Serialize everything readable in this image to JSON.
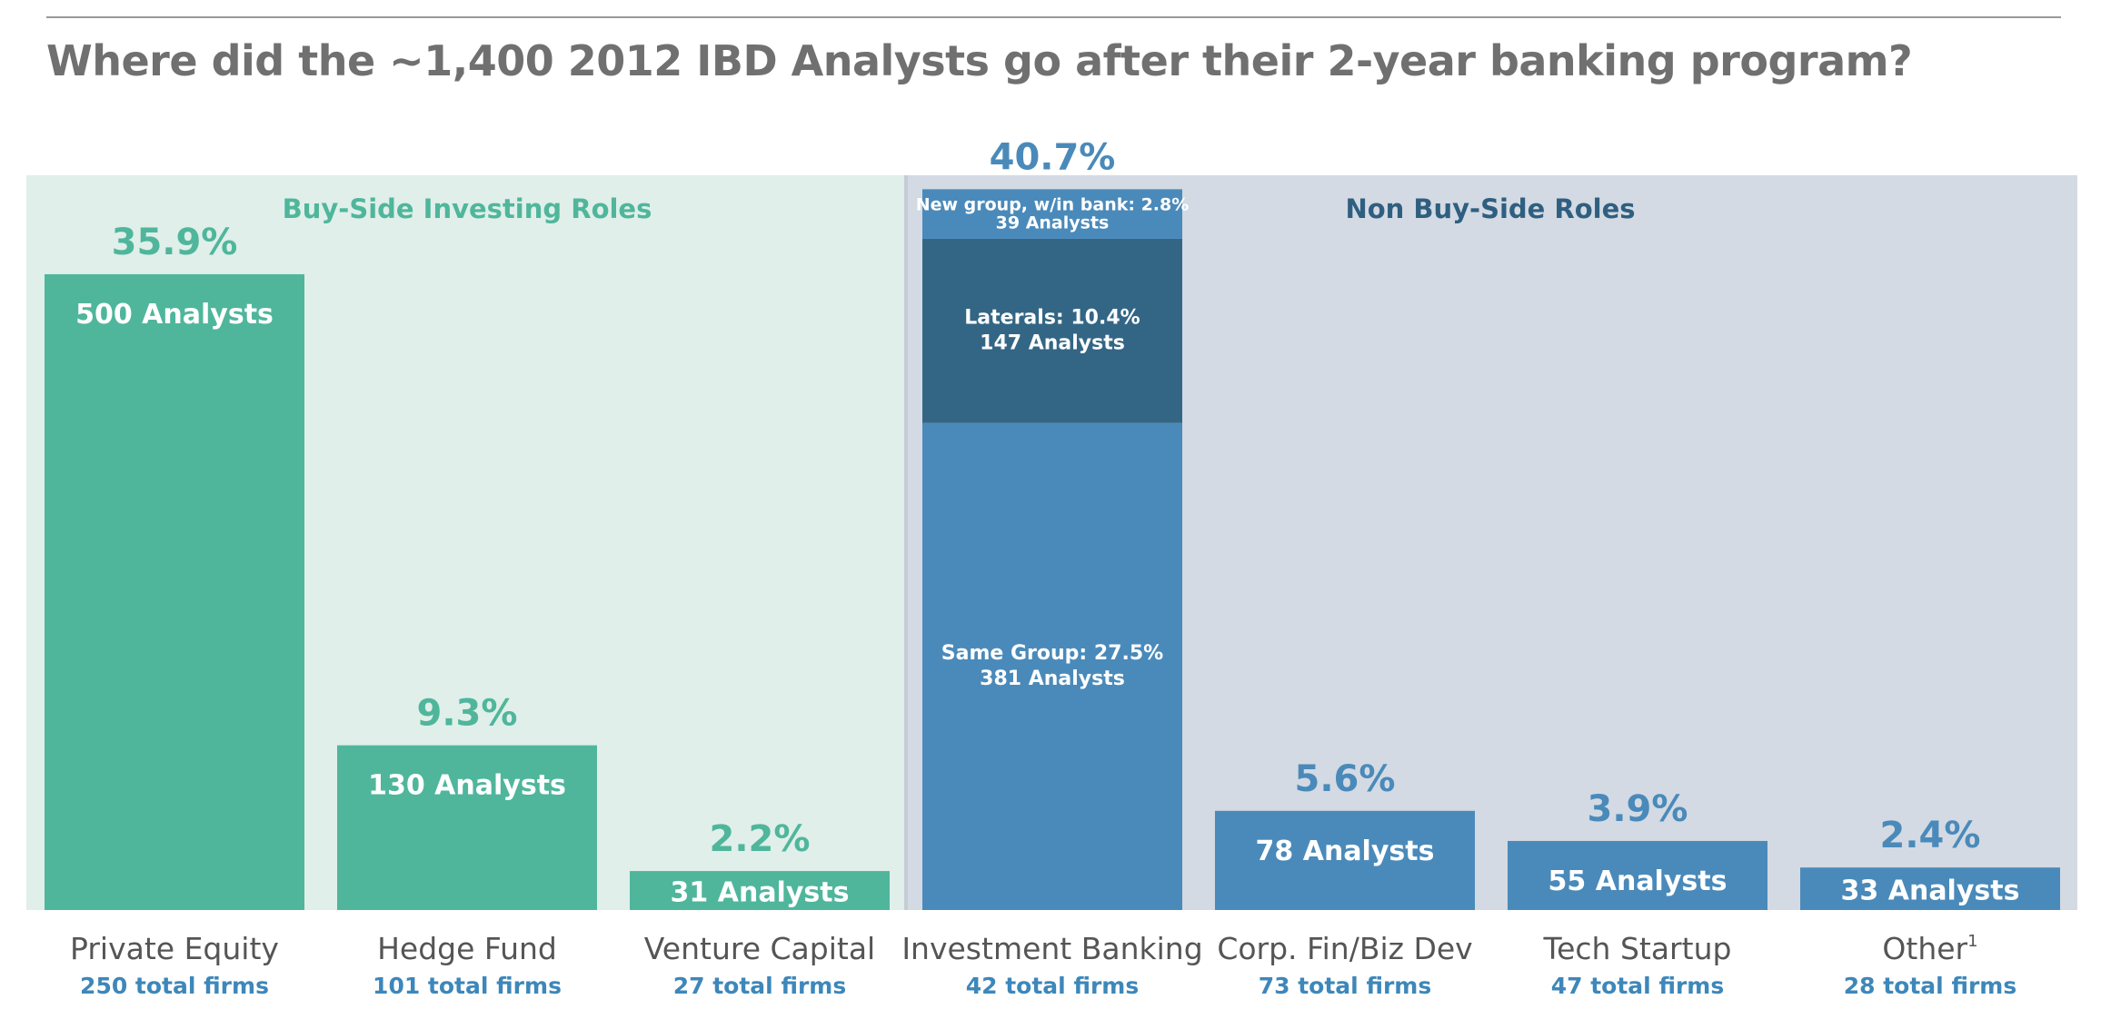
{
  "title": "Where did the ~1,400 2012 IBD Analysts go after their 2-year banking program?",
  "colors": {
    "buy_side_bg": "#e0efe9",
    "non_buy_side_bg": "#d3dae3",
    "buy_side_bar": "#4fb69c",
    "non_buy_side_bar": "#4a8aba",
    "laterals_segment": "#336685",
    "label_buy_side": "#4fb69c",
    "label_non_buy_side": "#2f5f80",
    "firms_text": "#3d87ba",
    "category_text": "#555555"
  },
  "chart_data": {
    "type": "bar",
    "title": "Where did the ~1,400 2012 IBD Analysts go after their 2-year banking program?",
    "ylim": [
      0,
      45
    ],
    "grid": false,
    "groups": [
      {
        "name": "Buy-Side Investing Roles",
        "categories": [
          "Private Equity",
          "Hedge Fund",
          "Venture Capital"
        ]
      },
      {
        "name": "Non Buy-Side Roles",
        "categories": [
          "Investment Banking",
          "Corp. Fin/Biz Dev",
          "Tech Startup",
          "Other"
        ]
      }
    ],
    "bars": [
      {
        "category": "Private Equity",
        "group": "buy",
        "percent": 35.9,
        "percent_label": "35.9%",
        "analysts": 500,
        "analysts_label": "500 Analysts",
        "firms_label": "250 total firms"
      },
      {
        "category": "Hedge Fund",
        "group": "buy",
        "percent": 9.3,
        "percent_label": "9.3%",
        "analysts": 130,
        "analysts_label": "130 Analysts",
        "firms_label": "101 total firms"
      },
      {
        "category": "Venture Capital",
        "group": "buy",
        "percent": 2.2,
        "percent_label": "2.2%",
        "analysts": 31,
        "analysts_label": "31 Analysts",
        "firms_label": "27 total firms"
      },
      {
        "category": "Investment Banking",
        "group": "non",
        "percent": 40.7,
        "percent_label": "40.7%",
        "firms_label": "42 total firms",
        "segments": [
          {
            "name": "Same Group",
            "percent": 27.5,
            "line1": "Same Group: 27.5%",
            "line2": "381 Analysts"
          },
          {
            "name": "Laterals",
            "percent": 10.4,
            "line1": "Laterals: 10.4%",
            "line2": "147 Analysts"
          },
          {
            "name": "New group, w/in bank",
            "percent": 2.8,
            "line1": "New group, w/in bank: 2.8%",
            "line2": "39 Analysts"
          }
        ]
      },
      {
        "category": "Corp. Fin/Biz Dev",
        "group": "non",
        "percent": 5.6,
        "percent_label": "5.6%",
        "analysts": 78,
        "analysts_label": "78 Analysts",
        "firms_label": "73 total firms"
      },
      {
        "category": "Tech Startup",
        "group": "non",
        "percent": 3.9,
        "percent_label": "3.9%",
        "analysts": 55,
        "analysts_label": "55 Analysts",
        "firms_label": "47 total firms"
      },
      {
        "category": "Other",
        "footnote": "1",
        "group": "non",
        "percent": 2.4,
        "percent_label": "2.4%",
        "analysts": 33,
        "analysts_label": "33 Analysts",
        "firms_label": "28 total firms"
      }
    ]
  }
}
